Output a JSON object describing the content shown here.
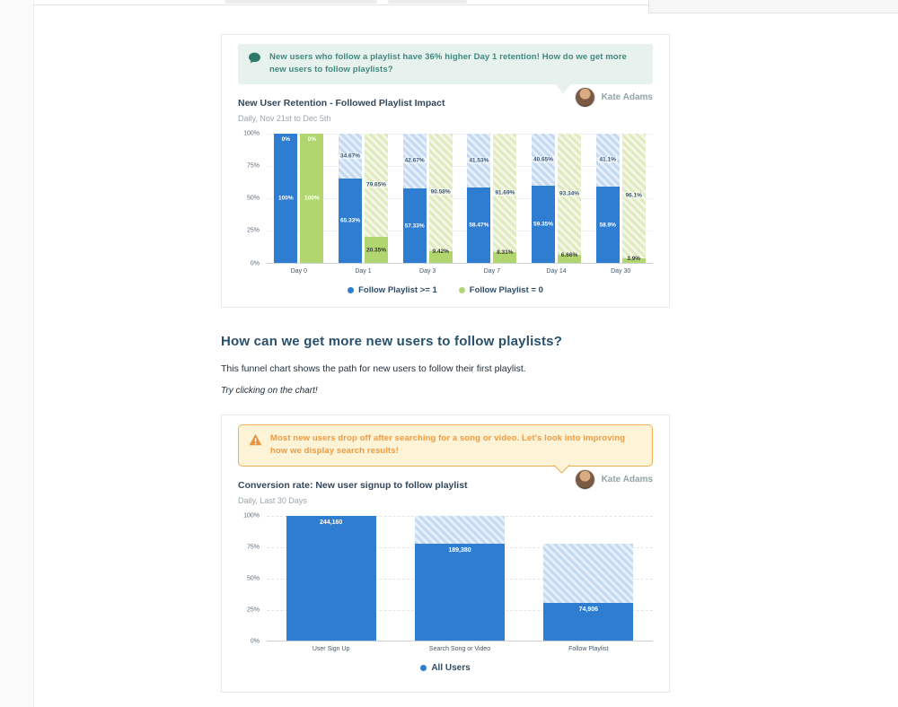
{
  "card1": {
    "comment_text": "New users who follow a playlist have 36% higher Day 1 retention! How do we get more new users to follow playlists?",
    "author_name": "Kate Adams"
  },
  "section": {
    "heading": "How can we get more new users to follow playlists?",
    "body": "This funnel chart shows the path for new users to follow their first playlist.",
    "note": "Try clicking on the chart!"
  },
  "card2": {
    "warning_text": "Most new users drop off after searching for a song or video. Let's look into improving how we display search results!",
    "author_name": "Kate Adams"
  },
  "chart_data": [
    {
      "type": "bar",
      "subtype": "stacked_retention",
      "title": "New User Retention - Followed Playlist Impact",
      "subtitle": "Daily, Nov 21st to Dec 5th",
      "categories": [
        "Day 0",
        "Day 1",
        "Day 3",
        "Day 7",
        "Day 14",
        "Day 30"
      ],
      "ylim": [
        0,
        100
      ],
      "ytick_labels": [
        "100%",
        "75%",
        "50%",
        "25%",
        "0%"
      ],
      "grid": true,
      "legend_position": "bottom",
      "series": [
        {
          "name": "Follow Playlist >= 1",
          "color": "#2e7dd1",
          "retained_pct": [
            100,
            65.33,
            57.33,
            58.47,
            59.35,
            58.9
          ],
          "retained_labels": [
            "100%",
            "65.33%",
            "57.33%",
            "58.47%",
            "59.35%",
            "58.9%"
          ],
          "churned_pct": [
            0,
            34.67,
            42.67,
            41.53,
            40.65,
            41.1
          ],
          "churned_labels": [
            "0%",
            "34.67%",
            "42.67%",
            "41.53%",
            "40.65%",
            "41.1%"
          ]
        },
        {
          "name": "Follow Playlist = 0",
          "color": "#b1d66f",
          "retained_pct": [
            100,
            20.35,
            9.42,
            8.31,
            6.66,
            3.9
          ],
          "retained_labels": [
            "100%",
            "20.35%",
            "9.42%",
            "8.31%",
            "6.66%",
            "3.9%"
          ],
          "churned_pct": [
            0,
            79.65,
            90.58,
            91.69,
            93.34,
            96.1
          ],
          "churned_labels": [
            "0%",
            "79.65%",
            "90.58%",
            "91.69%",
            "93.34%",
            "96.1%"
          ]
        }
      ]
    },
    {
      "type": "bar",
      "subtype": "funnel",
      "title": "Conversion rate: New user signup to follow playlist",
      "subtitle": "Daily, Last 30 Days",
      "categories": [
        "User Sign Up",
        "Search Song or Video",
        "Follow Playlist"
      ],
      "values": [
        244160,
        189380,
        74906
      ],
      "value_labels": [
        "244,160",
        "189,380",
        "74,906"
      ],
      "solid_pct": [
        100,
        77.6,
        30.7
      ],
      "hatch_top_pct": [
        100,
        100,
        77.6
      ],
      "ylim": [
        0,
        100
      ],
      "ytick_labels": [
        "100%",
        "75%",
        "50%",
        "25%",
        "0%"
      ],
      "grid": true,
      "color": "#2e7dd1",
      "legend": [
        "All Users"
      ],
      "legend_position": "bottom"
    }
  ]
}
